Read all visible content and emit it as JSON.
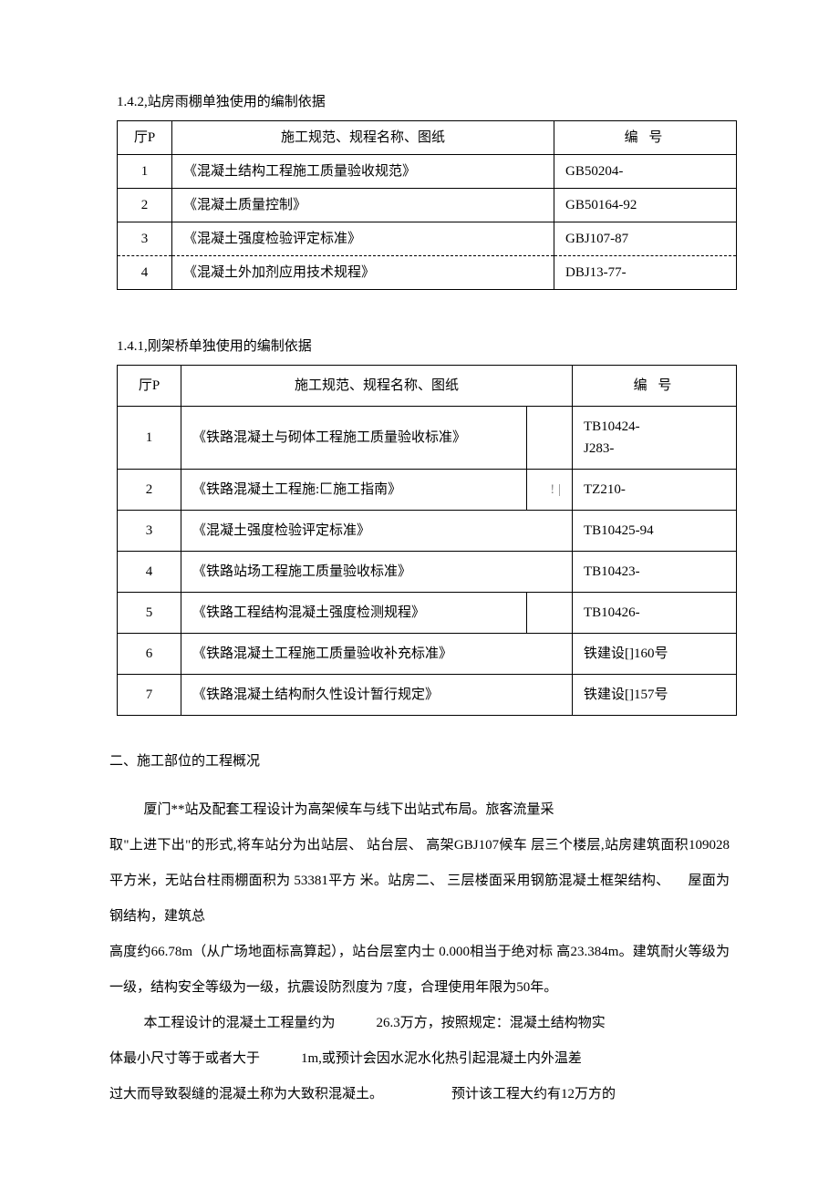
{
  "heading1": "1.4.2,站房雨棚单独使用的编制依据",
  "table1": {
    "headers": {
      "num": "厅P",
      "name": "施工规范、规程名称、图纸",
      "code": "编 号"
    },
    "rows": [
      {
        "num": "1",
        "name": "《混凝土结构工程施工质量验收规范》",
        "code": "GB50204-"
      },
      {
        "num": "2",
        "name": "《混凝土质量控制》",
        "code": "GB50164-92"
      },
      {
        "num": "3",
        "name": "《混凝土强度检验评定标准》",
        "code": "GBJ107-87"
      },
      {
        "num": "4",
        "name": "《混凝土外加剂应用技术规程》",
        "code": "DBJ13-77-"
      }
    ]
  },
  "heading2": "1.4.1,刚架桥单独使用的编制依据",
  "table2": {
    "headers": {
      "num": "厅P",
      "name": "施工规范、规程名称、图纸",
      "code": "编 号"
    },
    "rows": [
      {
        "num": "1",
        "name": "《铁路混凝土与砌体工程施工质量验收标准》",
        "mid": "",
        "code": "TB10424-\nJ283-"
      },
      {
        "num": "2",
        "name": "《铁路混凝土工程施:匚施工指南》",
        "mid": "! |",
        "code": "TZ210-"
      },
      {
        "num": "3",
        "name": "《混凝土强度检验评定标准》",
        "mid": "",
        "code": "TB10425-94"
      },
      {
        "num": "4",
        "name": "《铁路站场工程施工质量验收标准》",
        "mid": "",
        "code": "TB10423-"
      },
      {
        "num": "5",
        "name": "《铁路工程结构混凝土强度检测规程》",
        "mid": "",
        "code": "TB10426-"
      },
      {
        "num": "6",
        "name": "《铁路混凝土工程施工质量验收补充标准》",
        "mid": "",
        "code": "铁建设[]160号"
      },
      {
        "num": "7",
        "name": "《铁路混凝土结构耐久性设计暂行规定》",
        "mid": "",
        "code": "铁建设[]157号"
      }
    ]
  },
  "section2_title": "二、施工部位的工程概况",
  "para1": "厦门**站及配套工程设计为高架候车与线下出站式布局。旅客流量采",
  "para2_a": " 取\"上进下出\"的形式,将车站分为出站层、 站台层、 高架GBJ107候车 层三个楼层,站房建筑面积109028平方米，无站台柱雨棚面积为 53381平方 米。站房二、 三层楼面采用钢筋混凝土框架结构、",
  "para2_b": "屋面为",
  "para2_c": "钢结构，建筑总",
  "para3": " 高度约66.78m（从广场地面标高算起），站台层室内士 0.000相当于绝对标 高23.384m。建筑耐火等级为一级，结构安全等级为一级，抗震设防烈度为 7度，合理使用年限为50年。",
  "para4_a": "本工程设计的混凝土工程量约为",
  "para4_b": "26.3万方，按照规定：混凝土结构物实",
  "para5_a": "体最小尺寸等于或者大于",
  "para5_b": "1m,或预计会因水泥水化热引起混凝土内外温差",
  "para6_a": "过大而导致裂缝的混凝土称为大致积混凝土。",
  "para6_b": "预计该工程大约有12万方的"
}
